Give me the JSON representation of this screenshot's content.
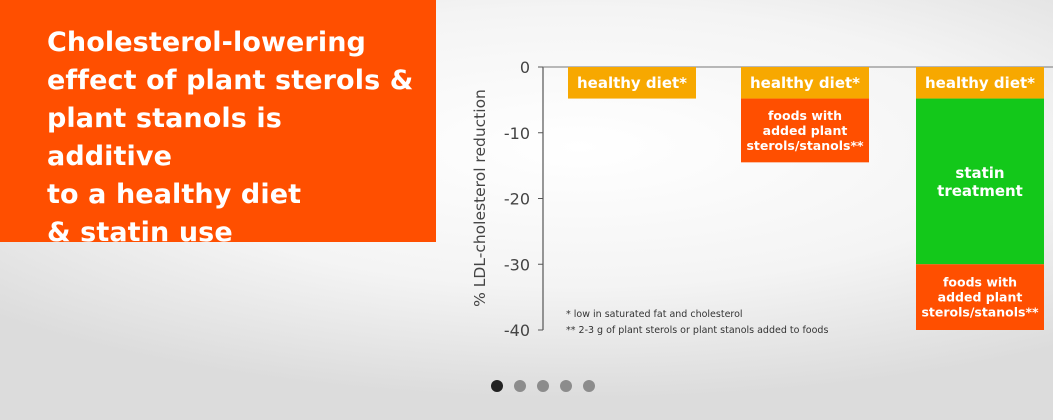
{
  "title": "Cholesterol-lowering\neffect of plant sterols &\nplant stanols is additive\nto a healthy diet\n& statin use",
  "colors": {
    "title_bg": "#ff4f00",
    "healthy_diet": "#f7a800",
    "plant_sterols": "#ff4f00",
    "statin": "#13c81a"
  },
  "chart_data": {
    "type": "bar",
    "stacked": true,
    "ylabel": "% LDL-cholesterol reduction",
    "ylim": [
      -40,
      0
    ],
    "yticks": [
      0,
      -10,
      -20,
      -30,
      -40
    ],
    "grid": false,
    "bars": [
      {
        "segments": [
          {
            "label": "healthy diet*",
            "from": 0,
            "to": -4.8,
            "color": "#f7a800",
            "font_size": 15
          }
        ]
      },
      {
        "segments": [
          {
            "label": "healthy diet*",
            "from": 0,
            "to": -4.8,
            "color": "#f7a800",
            "font_size": 15
          },
          {
            "label": "foods with\nadded plant\nsterols/stanols**",
            "from": -4.8,
            "to": -14.5,
            "color": "#ff4f00",
            "font_size": 12.5
          }
        ]
      },
      {
        "segments": [
          {
            "label": "healthy diet*",
            "from": 0,
            "to": -4.8,
            "color": "#f7a800",
            "font_size": 15
          },
          {
            "label": "statin\ntreatment",
            "from": -4.8,
            "to": -30,
            "color": "#13c81a",
            "font_size": 15
          },
          {
            "label": "foods with\nadded plant\nsterols/stanols**",
            "from": -30,
            "to": -40,
            "color": "#ff4f00",
            "font_size": 12.5
          }
        ]
      }
    ],
    "footnotes": [
      "* low in saturated fat and cholesterol",
      "** 2-3 g of plant sterols or plant stanols added to foods"
    ]
  },
  "carousel": {
    "count": 5,
    "active": 0
  }
}
